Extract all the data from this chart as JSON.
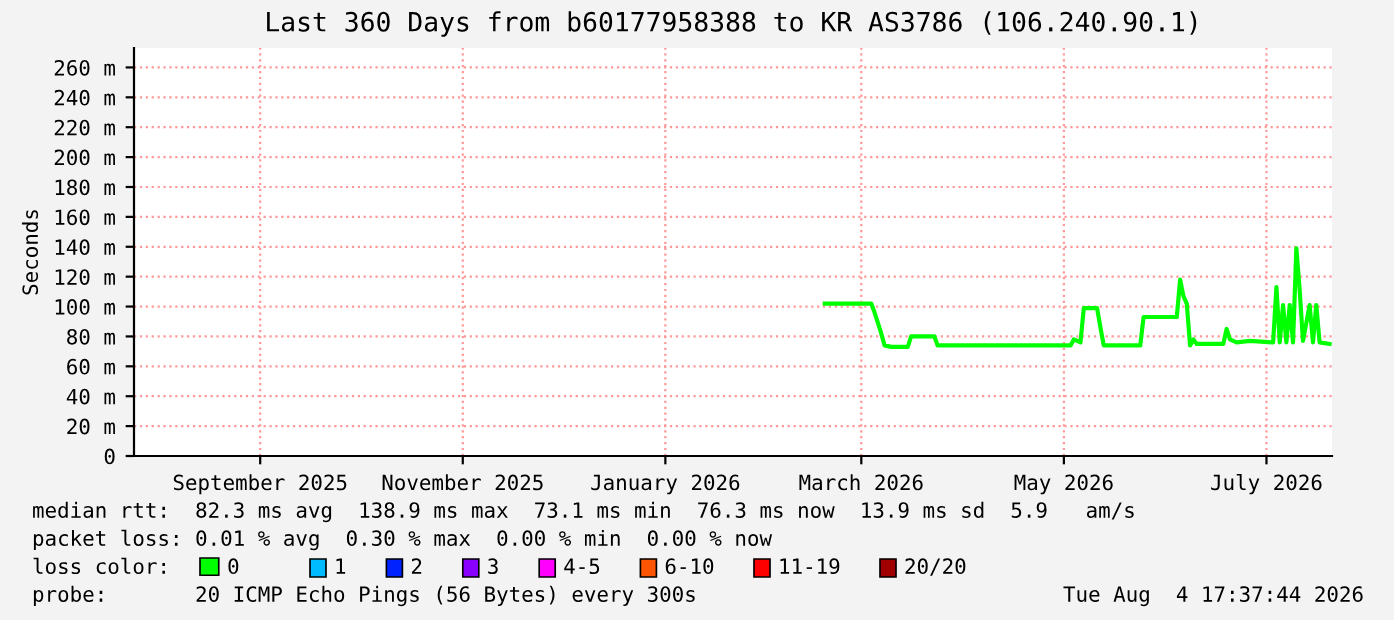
{
  "chart_data": {
    "type": "line",
    "title": "Last 360 Days from b60177958388 to KR AS3786 (106.240.90.1)",
    "ylabel": "Seconds",
    "x": [
      "2026-03-05",
      "2026-03-19",
      "2026-03-20",
      "2026-03-21",
      "2026-03-22",
      "2026-03-23",
      "2026-03-25",
      "2026-03-30",
      "2026-03-31",
      "2026-04-07",
      "2026-04-08",
      "2026-04-14",
      "2026-05-18",
      "2026-05-19",
      "2026-05-21",
      "2026-05-22",
      "2026-05-26",
      "2026-05-27",
      "2026-05-28",
      "2026-06-08",
      "2026-06-09",
      "2026-06-19",
      "2026-06-20",
      "2026-06-21",
      "2026-06-22",
      "2026-06-23",
      "2026-06-24",
      "2026-06-25",
      "2026-07-03",
      "2026-07-04",
      "2026-07-05",
      "2026-07-07",
      "2026-07-11",
      "2026-07-18",
      "2026-07-19",
      "2026-07-20",
      "2026-07-21",
      "2026-07-22",
      "2026-07-23",
      "2026-07-24",
      "2026-07-25",
      "2026-07-26",
      "2026-07-27",
      "2026-07-29",
      "2026-07-30",
      "2026-07-31",
      "2026-08-01",
      "2026-08-04"
    ],
    "series": [
      {
        "name": "0",
        "color": "#00ff00",
        "values": [
          102,
          102,
          96,
          89,
          82,
          74,
          73,
          73,
          80,
          80,
          74,
          74,
          74,
          78,
          76,
          99,
          99,
          86,
          74,
          74,
          93,
          93,
          118,
          107,
          102,
          74,
          78,
          75,
          75,
          85,
          78,
          76,
          77,
          76,
          113,
          76,
          101,
          76,
          101,
          76,
          139,
          111,
          77,
          101,
          76,
          101,
          76,
          75
        ]
      }
    ],
    "legend_title": "loss color:",
    "legend": "bottom",
    "xlim": [
      "2025-08-09",
      "2026-08-04T17:37"
    ],
    "xticks": [
      {
        "value": "2025-09-16",
        "label": "September 2025"
      },
      {
        "value": "2025-11-16",
        "label": "November 2025"
      },
      {
        "value": "2026-01-16",
        "label": "January 2026"
      },
      {
        "value": "2026-03-16",
        "label": "March 2026"
      },
      {
        "value": "2026-05-16",
        "label": "May 2026"
      },
      {
        "value": "2026-07-16",
        "label": "July 2026"
      }
    ],
    "ylim": [
      0,
      273
    ],
    "yticks": [
      0,
      {
        "value": 20,
        "label": "20 m"
      },
      {
        "value": 40,
        "label": "40 m"
      },
      {
        "value": 60,
        "label": "60 m"
      },
      {
        "value": 80,
        "label": "80 m"
      },
      {
        "value": 100,
        "label": "100 m"
      },
      {
        "value": 120,
        "label": "120 m"
      },
      {
        "value": 140,
        "label": "140 m"
      },
      {
        "value": 160,
        "label": "160 m"
      },
      {
        "value": 180,
        "label": "180 m"
      },
      {
        "value": 200,
        "label": "200 m"
      },
      {
        "value": 220,
        "label": "220 m"
      },
      {
        "value": 240,
        "label": "240 m"
      },
      {
        "value": 260,
        "label": "260 m"
      }
    ],
    "grid": true,
    "marker": "none",
    "line_style": "solid",
    "annotations": [
      "median rtt:  82.3 ms avg  138.9 ms max  73.1 ms min  76.3 ms now  13.9 ms sd  5.9   am/s",
      "packet loss: 0.01 % avg  0.30 % max  0.00 % min  0.00 % now",
      "probe:       20 ICMP Echo Pings (56 Bytes) every 300s",
      "Tue Aug  4 17:37:44 2026",
      "1",
      "2",
      "3",
      "4-5",
      "6-10",
      "11-19",
      "20/20"
    ]
  }
}
